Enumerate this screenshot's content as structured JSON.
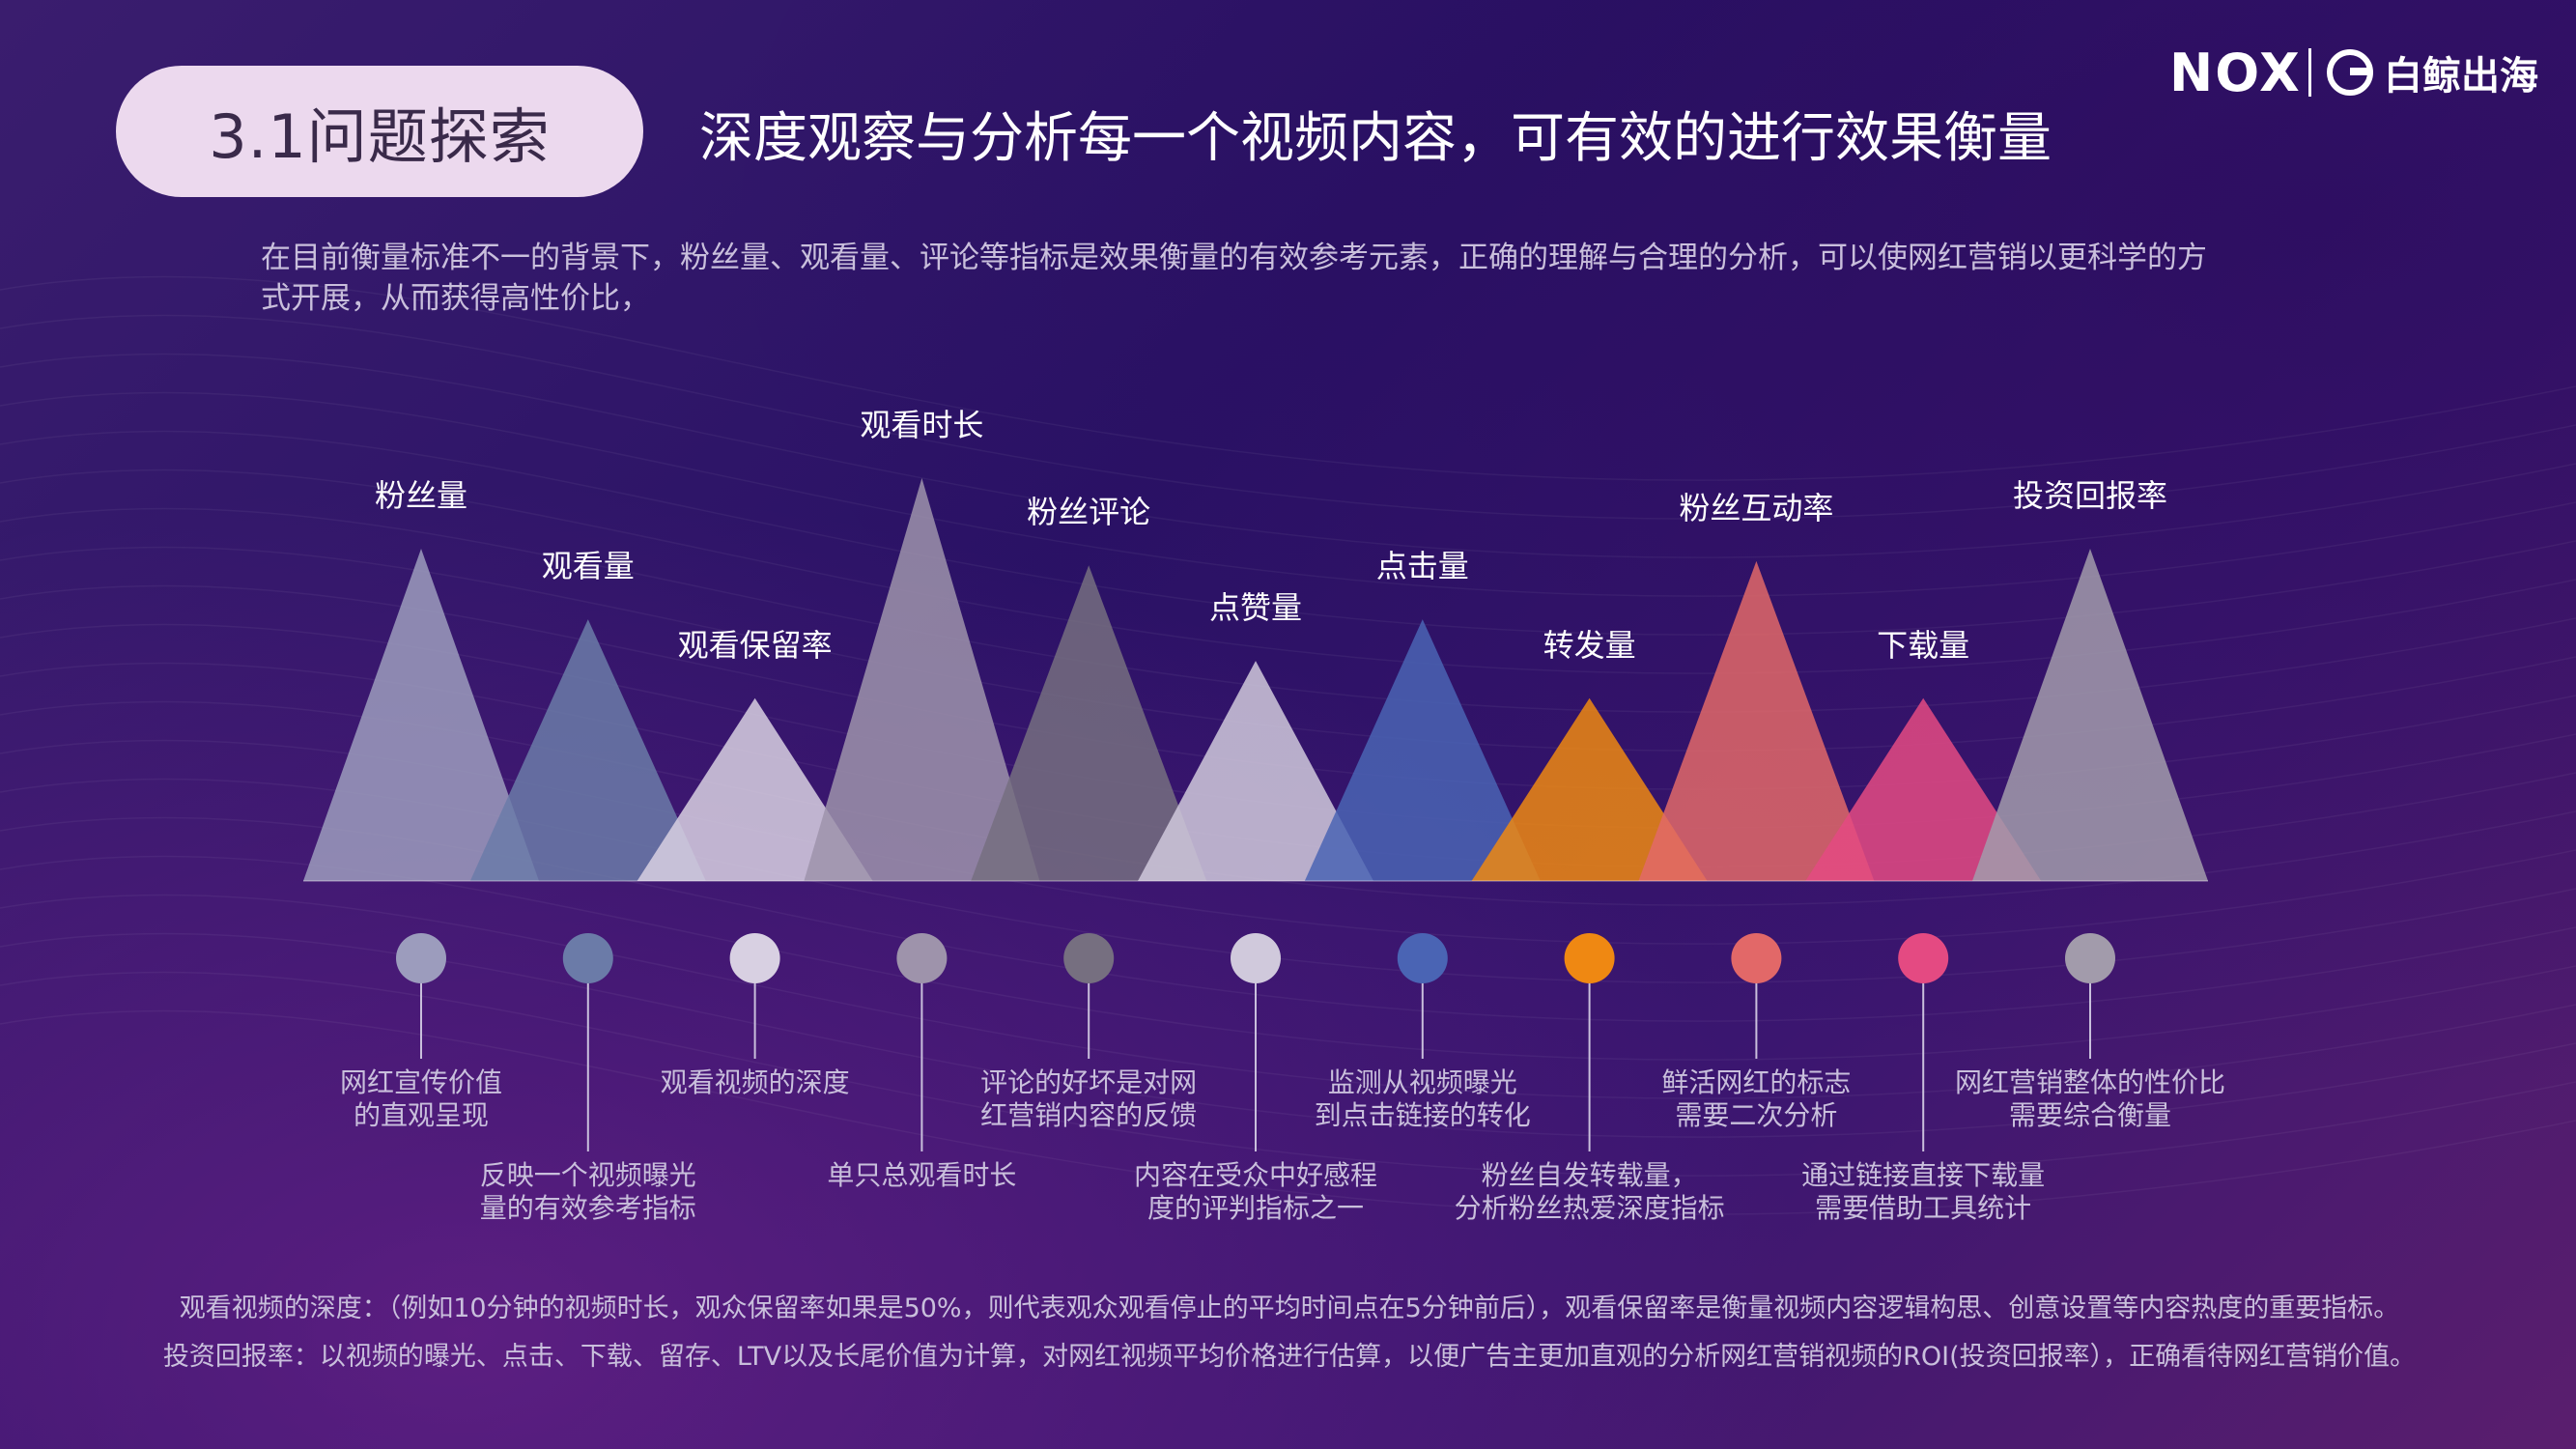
{
  "title_pill": "3.1问题探索",
  "headline": "深度观察与分析每一个视频内容，可有效的进行效果衡量",
  "intro": "在目前衡量标准不一的背景下，粉丝量、观看量、评论等指标是效果衡量的有效参考元素，正确的理解与合理的分析，可以使网红营销以更科学的方式开展，从而获得高性价比，",
  "logos": {
    "nox": "NOX",
    "baijing": "白鲸出海"
  },
  "metrics": [
    {
      "label": "粉丝量",
      "level": 0.8,
      "color": "#9c9cbd",
      "desc": [
        "网红宣传价值",
        "的直观呈现"
      ]
    },
    {
      "label": "观看量",
      "level": 0.63,
      "color": "#6b7ba8",
      "desc": [
        "反映一个视频曝光",
        "量的有效参考指标"
      ]
    },
    {
      "label": "观看保留率",
      "level": 0.44,
      "color": "#d8d0e2",
      "desc": [
        "观看视频的深度"
      ]
    },
    {
      "label": "观看时长",
      "level": 0.97,
      "color": "#9e93ab",
      "desc": [
        "单只总观看时长"
      ]
    },
    {
      "label": "粉丝评论",
      "level": 0.76,
      "color": "#766f80",
      "desc": [
        "评论的好坏是对网",
        "红营销内容的反馈"
      ]
    },
    {
      "label": "点赞量",
      "level": 0.53,
      "color": "#d0c9dc",
      "desc": [
        "内容在受众中好感程",
        "度的评判指标之一"
      ]
    },
    {
      "label": "点击量",
      "level": 0.63,
      "color": "#4a64b4",
      "desc": [
        "监测从视频曝光",
        "到点击链接的转化"
      ]
    },
    {
      "label": "转发量",
      "level": 0.44,
      "color": "#ef8812",
      "desc": [
        "粉丝自发转载量，",
        "分析粉丝热爱深度指标"
      ]
    },
    {
      "label": "粉丝互动率",
      "level": 0.77,
      "color": "#e26868",
      "desc": [
        "鲜活网红的标志",
        "需要二次分析"
      ]
    },
    {
      "label": "下载量",
      "level": 0.44,
      "color": "#e44a82",
      "desc": [
        "通过链接直接下载量",
        "需要借助工具统计"
      ]
    },
    {
      "label": "投资回报率",
      "level": 0.8,
      "color": "#a29bab",
      "desc": [
        "网红营销整体的性价比",
        "需要综合衡量"
      ]
    }
  ],
  "footnotes": [
    "观看视频的深度：（例如10分钟的视频时长，观众保留率如果是50%，则代表观众观看停止的平均时间点在5分钟前后），观看保留率是衡量视频内容逻辑构思、创意设置等内容热度的重要指标。",
    "投资回报率：以视频的曝光、点击、下载、留存、LTV以及长尾价值为计算，对网红视频平均价格进行估算，以便广告主更加直观的分析网红营销视频的ROI(投资回报率），正确看待网红营销价值。"
  ]
}
